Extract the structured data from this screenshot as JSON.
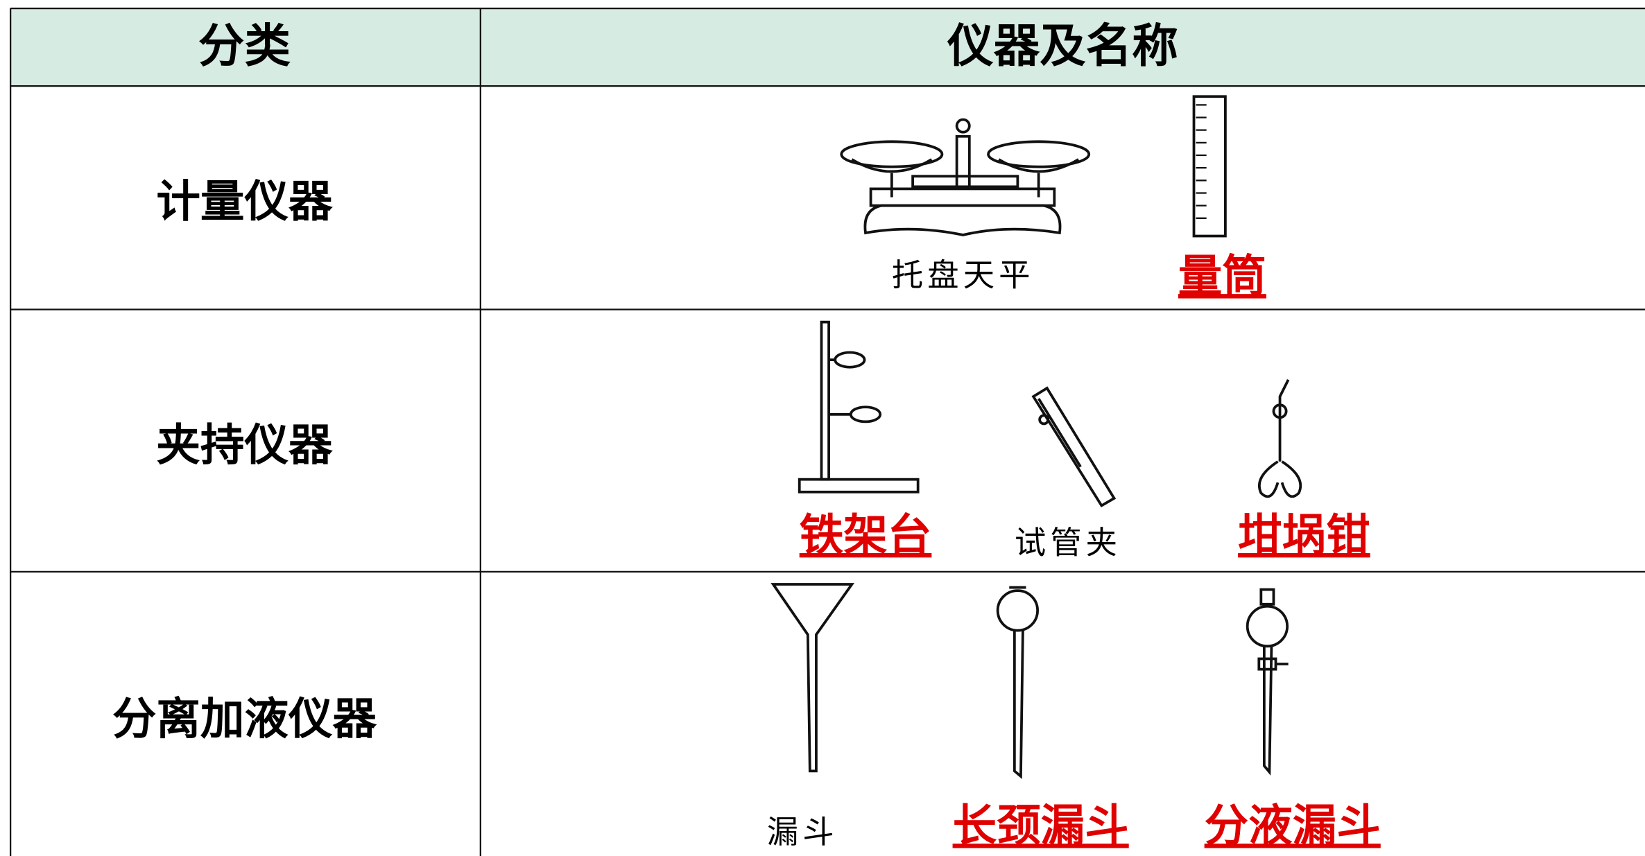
{
  "header": {
    "category": "分类",
    "instruments": "仪器及名称"
  },
  "rows": [
    {
      "category": "计量仪器",
      "items": [
        {
          "label": "托盘天平"
        },
        {
          "label": "量筒",
          "color": "#e00000"
        }
      ]
    },
    {
      "category": "夹持仪器",
      "items": [
        {
          "label": "铁架台",
          "color": "#e00000"
        },
        {
          "label": "试管夹"
        },
        {
          "label": "坩埚钳",
          "color": "#e00000"
        }
      ]
    },
    {
      "category": "分离加液仪器",
      "items": [
        {
          "label": "漏斗"
        },
        {
          "label": "长颈漏斗",
          "color": "#e00000"
        },
        {
          "label": "分液漏斗",
          "color": "#e00000"
        }
      ]
    }
  ]
}
